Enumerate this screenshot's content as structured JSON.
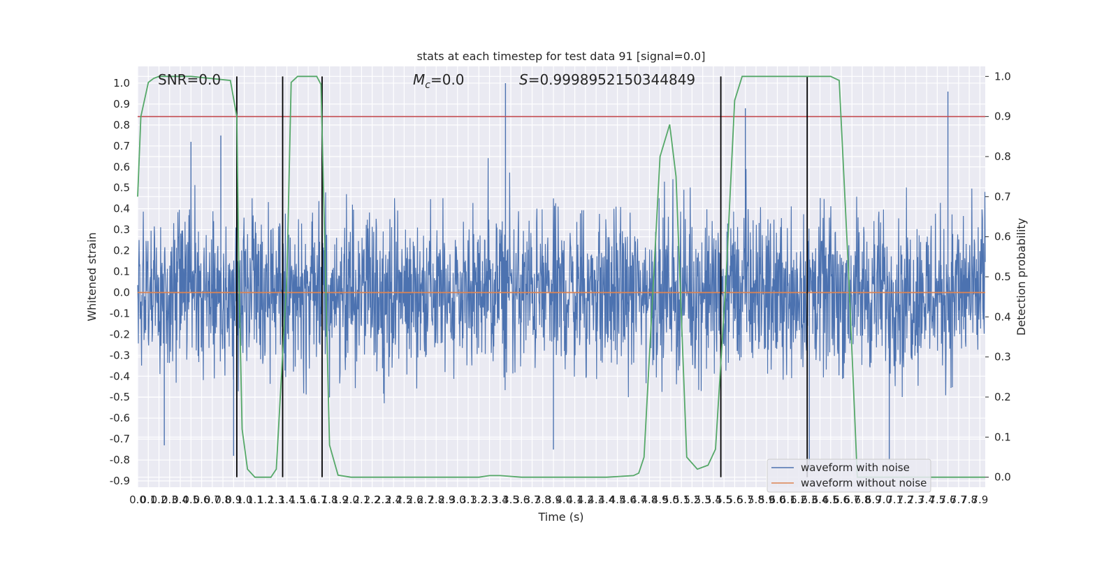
{
  "chart_data": {
    "type": "line",
    "title": "stats at each timestep for test data 91 [signal=0.0]",
    "xlabel": "Time (s)",
    "ylabel": "Whitened strain",
    "y2label": "Detection probability",
    "annotations": {
      "snr": "SNR=0.0",
      "mc_symbol": "M",
      "mc_sub": "c",
      "mc_value": "=0.0",
      "s_symbol": "S",
      "s_value": "=0.9998952150344849"
    },
    "xlim": [
      0.0,
      7.95
    ],
    "ylim": [
      -0.93,
      1.08
    ],
    "y2lim": [
      -0.025,
      1.025
    ],
    "grid": true,
    "legend_position": "lower-right",
    "x_ticks": [
      "0.0",
      "0.1",
      "0.2",
      "0.3",
      "0.4",
      "0.5",
      "0.6",
      "0.7",
      "0.8",
      "0.9",
      "1.0",
      "1.1",
      "1.2",
      "1.3",
      "1.4",
      "1.5",
      "1.6",
      "1.7",
      "1.8",
      "1.9",
      "2.0",
      "2.1",
      "2.2",
      "2.3",
      "2.4",
      "2.5",
      "2.6",
      "2.7",
      "2.8",
      "2.9",
      "3.0",
      "3.1",
      "3.2",
      "3.3",
      "3.4",
      "3.5",
      "3.6",
      "3.7",
      "3.8",
      "3.9",
      "4.0",
      "4.1",
      "4.2",
      "4.3",
      "4.4",
      "4.5",
      "4.6",
      "4.7",
      "4.8",
      "4.9",
      "5.0",
      "5.1",
      "5.2",
      "5.3",
      "5.4",
      "5.5",
      "5.6",
      "5.7",
      "5.8",
      "5.9",
      "6.0",
      "6.1",
      "6.2",
      "6.3",
      "6.4",
      "6.5",
      "6.6",
      "6.7",
      "6.8",
      "6.9",
      "7.0",
      "7.1",
      "7.2",
      "7.3",
      "7.4",
      "7.5",
      "7.6",
      "7.7",
      "7.8",
      "7.9"
    ],
    "y_ticks": [
      "-0.9",
      "-0.8",
      "-0.7",
      "-0.6",
      "-0.5",
      "-0.4",
      "-0.3",
      "-0.2",
      "-0.1",
      "0.0",
      "0.1",
      "0.2",
      "0.3",
      "0.4",
      "0.5",
      "0.6",
      "0.7",
      "0.8",
      "0.9",
      "1.0"
    ],
    "y2_ticks": [
      "0.0",
      "0.1",
      "0.2",
      "0.3",
      "0.4",
      "0.5",
      "0.6",
      "0.7",
      "0.8",
      "0.9",
      "1.0"
    ],
    "series": [
      {
        "name": "waveform with noise",
        "color": "#4c72b0",
        "kind": "noise",
        "note_envelope": [
          -0.6,
          0.6
        ],
        "peaks": [
          [
            0.5,
            0.72
          ],
          [
            0.78,
            0.75
          ],
          [
            3.45,
            1.0
          ],
          [
            5.7,
            0.88
          ],
          [
            7.6,
            0.96
          ],
          [
            0.25,
            -0.73
          ],
          [
            0.9,
            -0.78
          ],
          [
            3.9,
            -0.75
          ],
          [
            6.3,
            -0.85
          ],
          [
            7.05,
            -0.8
          ]
        ]
      },
      {
        "name": "waveform without noise",
        "color": "#dd8452",
        "kind": "line",
        "x": [
          0.0,
          7.95
        ],
        "y": [
          0.0,
          0.0
        ]
      }
    ],
    "detection_probability": {
      "color": "#55a868",
      "x": [
        0.0,
        0.03,
        0.1,
        0.15,
        0.2,
        0.5,
        0.87,
        0.93,
        0.95,
        0.98,
        1.03,
        1.1,
        1.25,
        1.3,
        1.4,
        1.44,
        1.5,
        1.68,
        1.72,
        1.8,
        1.88,
        2.0,
        3.2,
        3.3,
        3.4,
        3.6,
        4.4,
        4.65,
        4.7,
        4.75,
        4.9,
        4.99,
        5.05,
        5.15,
        5.25,
        5.35,
        5.42,
        5.52,
        5.6,
        5.67,
        5.75,
        6.5,
        6.58,
        6.67,
        6.75,
        7.95
      ],
      "y": [
        0.7,
        0.9,
        0.985,
        0.995,
        1.0,
        1.0,
        0.99,
        0.9,
        0.5,
        0.12,
        0.02,
        0.0,
        0.0,
        0.02,
        0.5,
        0.985,
        1.0,
        1.0,
        0.98,
        0.08,
        0.005,
        0.0,
        0.0,
        0.004,
        0.004,
        0.0,
        0.0,
        0.004,
        0.01,
        0.05,
        0.8,
        0.88,
        0.75,
        0.05,
        0.02,
        0.03,
        0.07,
        0.5,
        0.94,
        1.0,
        1.0,
        1.0,
        0.99,
        0.5,
        0.0,
        0.0
      ]
    },
    "threshold": {
      "color": "#c44e52",
      "y2": 0.9
    },
    "event_lines": {
      "color": "#000000",
      "x": [
        0.93,
        1.36,
        1.73,
        5.47,
        6.28
      ]
    }
  }
}
